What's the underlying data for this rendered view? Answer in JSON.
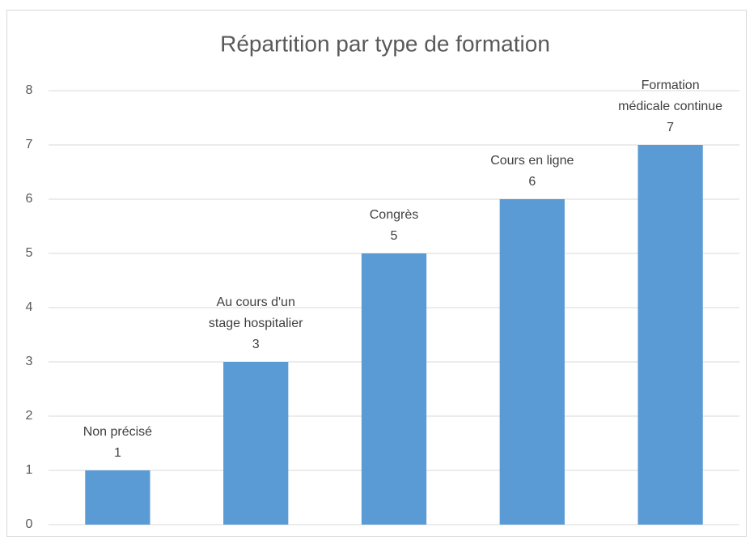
{
  "chart_data": {
    "type": "bar",
    "title": "Répartition par type de formation",
    "categories": [
      "Non précisé",
      "Au cours d'un stage hospitalier",
      "Congrès",
      "Cours en ligne",
      "Formation médicale continue"
    ],
    "values": [
      1,
      3,
      5,
      6,
      7
    ],
    "color": "#5b9bd5",
    "ylim": [
      0,
      8
    ],
    "yticks": [
      0,
      1,
      2,
      3,
      4,
      5,
      6,
      7,
      8
    ],
    "grid": true
  }
}
